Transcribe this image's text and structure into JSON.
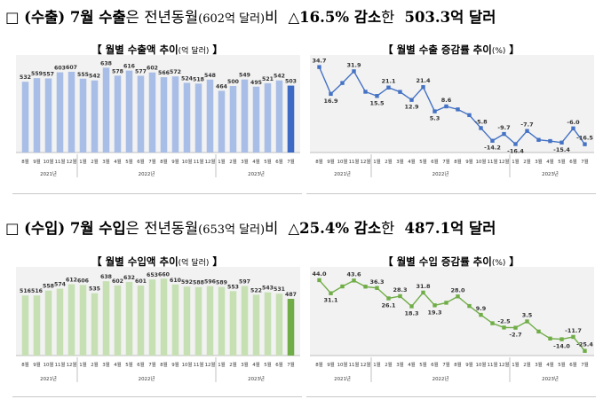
{
  "exports": {
    "heading": {
      "box": "□",
      "prefix": "(수출) 7월 수출",
      "particle": "은",
      "phrase": "전년동월",
      "base": "(602억 달러)",
      "suffix": "비",
      "change": "△16.5% 감소",
      "particle2": "한",
      "value": "503.3억 달러"
    },
    "amount_title": {
      "left": "【 월별 수출액 추이",
      "small": "(억 달러)",
      "right": "】"
    },
    "rate_title": {
      "left": "【 월별 수출 증감률 추이",
      "small": "(%)",
      "right": "】"
    }
  },
  "imports": {
    "heading": {
      "box": "□",
      "prefix": "(수입) 7월 수입",
      "particle": "은",
      "phrase": "전년동월",
      "base": "(653억 달러)",
      "suffix": "비",
      "change": "△25.4% 감소",
      "particle2": "한",
      "value": "487.1억 달러"
    },
    "amount_title": {
      "left": "【 월별 수입액 추이",
      "small": "(억 달러)",
      "right": "】"
    },
    "rate_title": {
      "left": "【 월별 수입 증감률 추이",
      "small": "(%)",
      "right": "】"
    }
  },
  "colors": {
    "export_bar": "#a9bee6",
    "export_bar_last": "#3c6ac4",
    "export_line": "#4472c4",
    "import_bar": "#c6e0b4",
    "import_bar_last": "#70ad47",
    "import_line": "#70ad47",
    "chart_bg": "#f2f2f2"
  },
  "chart_data": [
    {
      "id": "export-amount",
      "type": "bar",
      "categories": [
        "8월",
        "9월",
        "10월",
        "11월",
        "12월",
        "1월",
        "2월",
        "3월",
        "4월",
        "5월",
        "6월",
        "7월",
        "8월",
        "9월",
        "10월",
        "11월",
        "12월",
        "1월",
        "2월",
        "3월",
        "4월",
        "5월",
        "6월",
        "7월"
      ],
      "year_groups": [
        {
          "label": "2021년",
          "count": 5
        },
        {
          "label": "2022년",
          "count": 12
        },
        {
          "label": "2023년",
          "count": 7
        }
      ],
      "values": [
        532,
        559,
        557,
        603,
        607,
        555,
        542,
        638,
        578,
        616,
        577,
        602,
        566,
        572,
        524,
        518,
        548,
        464,
        500,
        549,
        495,
        521,
        542,
        503
      ],
      "ylim": [
        0,
        680
      ],
      "highlight_last": true
    },
    {
      "id": "export-rate",
      "type": "line",
      "categories": [
        "8월",
        "9월",
        "10월",
        "11월",
        "12월",
        "1월",
        "2월",
        "3월",
        "4월",
        "5월",
        "6월",
        "7월",
        "8월",
        "9월",
        "10월",
        "11월",
        "12월",
        "1월",
        "2월",
        "3월",
        "4월",
        "5월",
        "6월",
        "7월"
      ],
      "year_groups": [
        {
          "label": "2021년",
          "count": 5
        },
        {
          "label": "2022년",
          "count": 12
        },
        {
          "label": "2023년",
          "count": 7
        }
      ],
      "values": [
        34.7,
        16.9,
        24.1,
        31.9,
        18.3,
        15.5,
        21.1,
        18.2,
        12.9,
        21.4,
        5.3,
        8.6,
        6.6,
        2.8,
        -5.8,
        -14.2,
        -9.7,
        -16.4,
        -7.7,
        -13.6,
        -14.4,
        -15.4,
        -6.0,
        -16.5
      ],
      "labels": [
        "34.7",
        "16.9",
        "",
        "31.9",
        "",
        "15.5",
        "21.1",
        "",
        "12.9",
        "21.4",
        "5.3",
        "8.6",
        "",
        "",
        "-5.8",
        "-14.2",
        "-9.7",
        "-16.4",
        "-7.7",
        "",
        "",
        "-15.4",
        "-6.0",
        "-16.5"
      ],
      "ylim": [
        -22,
        38
      ]
    },
    {
      "id": "import-amount",
      "type": "bar",
      "categories": [
        "8월",
        "9월",
        "10월",
        "11월",
        "12월",
        "1월",
        "2월",
        "3월",
        "4월",
        "5월",
        "6월",
        "7월",
        "8월",
        "9월",
        "10월",
        "11월",
        "12월",
        "1월",
        "2월",
        "3월",
        "4월",
        "5월",
        "6월",
        "7월"
      ],
      "year_groups": [
        {
          "label": "2021년",
          "count": 5
        },
        {
          "label": "2022년",
          "count": 12
        },
        {
          "label": "2023년",
          "count": 7
        }
      ],
      "values": [
        516,
        516,
        558,
        574,
        612,
        606,
        535,
        638,
        602,
        632,
        601,
        653,
        660,
        610,
        592,
        588,
        596,
        589,
        553,
        597,
        522,
        543,
        531,
        487
      ],
      "ylim": [
        0,
        700
      ],
      "highlight_last": true
    },
    {
      "id": "import-rate",
      "type": "line",
      "categories": [
        "8월",
        "9월",
        "10월",
        "11월",
        "12월",
        "1월",
        "2월",
        "3월",
        "4월",
        "5월",
        "6월",
        "7월",
        "8월",
        "9월",
        "10월",
        "11월",
        "12월",
        "1월",
        "2월",
        "3월",
        "4월",
        "5월",
        "6월",
        "7월"
      ],
      "year_groups": [
        {
          "label": "2021년",
          "count": 5
        },
        {
          "label": "2022년",
          "count": 12
        },
        {
          "label": "2023년",
          "count": 7
        }
      ],
      "values": [
        44.0,
        31.1,
        37.8,
        43.6,
        37.6,
        36.3,
        26.1,
        28.3,
        18.3,
        31.8,
        19.3,
        21.8,
        28.0,
        18.6,
        9.9,
        1.7,
        -2.5,
        -2.7,
        3.5,
        -6.4,
        -13.3,
        -14.0,
        -11.7,
        -25.4
      ],
      "labels": [
        "44.0",
        "31.1",
        "",
        "43.6",
        "",
        "36.3",
        "26.1",
        "28.3",
        "18.3",
        "31.8",
        "19.3",
        "",
        "28.0",
        "",
        "9.9",
        "",
        "-2.5",
        "-2.7",
        "3.5",
        "",
        "",
        "-14.0",
        "-11.7",
        "-25.4"
      ],
      "ylim": [
        -30,
        50
      ]
    }
  ]
}
